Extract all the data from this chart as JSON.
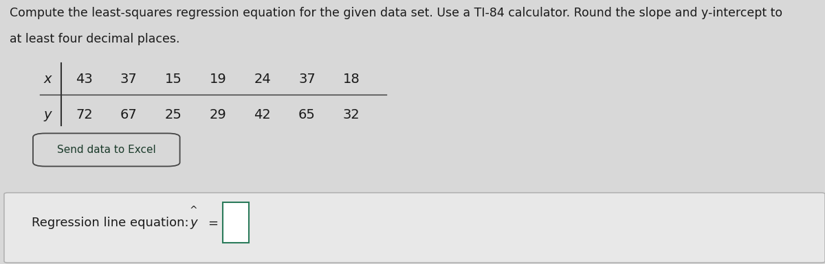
{
  "title_line1": "Compute the least-squares regression equation for the given data set. Use a TI-84 calculator. Round the slope and y-intercept to",
  "title_line2": "at least four decimal places.",
  "x_label": "x",
  "y_label": "y",
  "x_values": [
    43,
    37,
    15,
    19,
    24,
    37,
    18
  ],
  "y_values": [
    72,
    67,
    25,
    29,
    42,
    65,
    32
  ],
  "send_button_text": "Send data to Excel",
  "regression_label": "Regression line equation: ",
  "bg_color": "#d8d8d8",
  "upper_bg": "#d4d4d4",
  "box_bg_color": "#e8e8e8",
  "answer_box_color": "#ffffff",
  "text_color": "#1a1a1a",
  "button_text_color": "#1a3a2a",
  "font_size_title": 12.5,
  "font_size_table": 14.0,
  "font_size_button": 11.0,
  "font_size_regression": 13.0,
  "table_line_color": "#333333",
  "button_edge_color": "#444444",
  "bottom_box_edge": "#aaaaaa",
  "answer_box_edge": "#2a7a5a"
}
